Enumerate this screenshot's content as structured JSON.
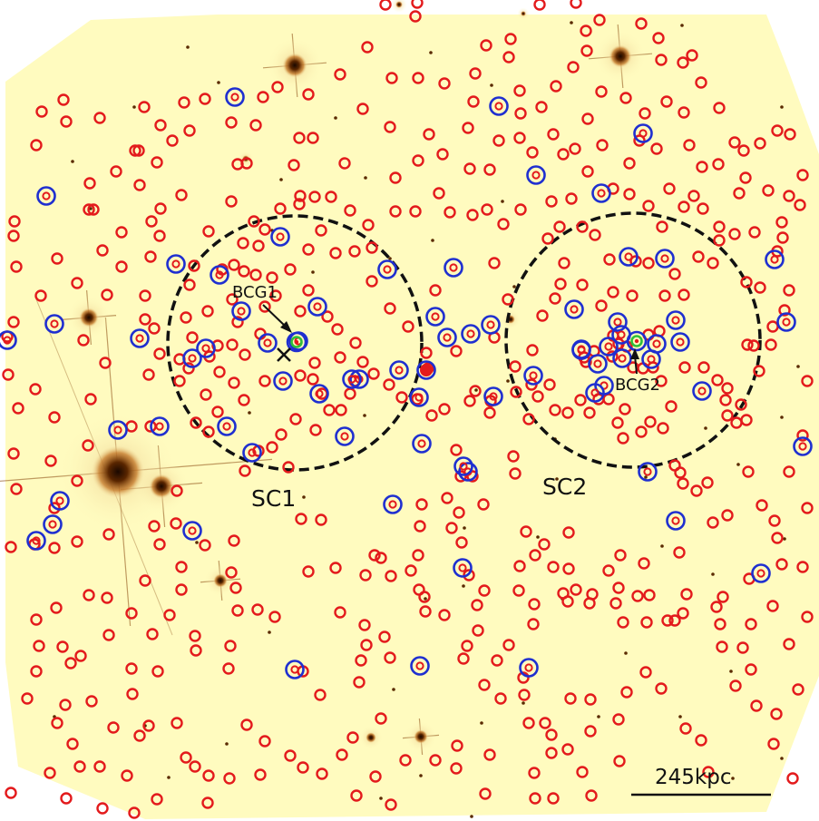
{
  "labels": {
    "bcg1": "BCG1",
    "bcg2": "BCG2",
    "sc1": "SC1",
    "sc2": "SC2",
    "scale_bar": "245kpc"
  },
  "colors": {
    "field": "#fffbbf",
    "red_marker": "#e31a1c",
    "blue_marker": "#1f2fd0",
    "green_marker": "#2fbf3a",
    "circle": "#111111",
    "star_core": "#3a1400",
    "star_halo": "#b35a00"
  },
  "icons": {
    "bcg_marker": "green-ring-icon",
    "centroid_marker": "cross-icon"
  }
}
